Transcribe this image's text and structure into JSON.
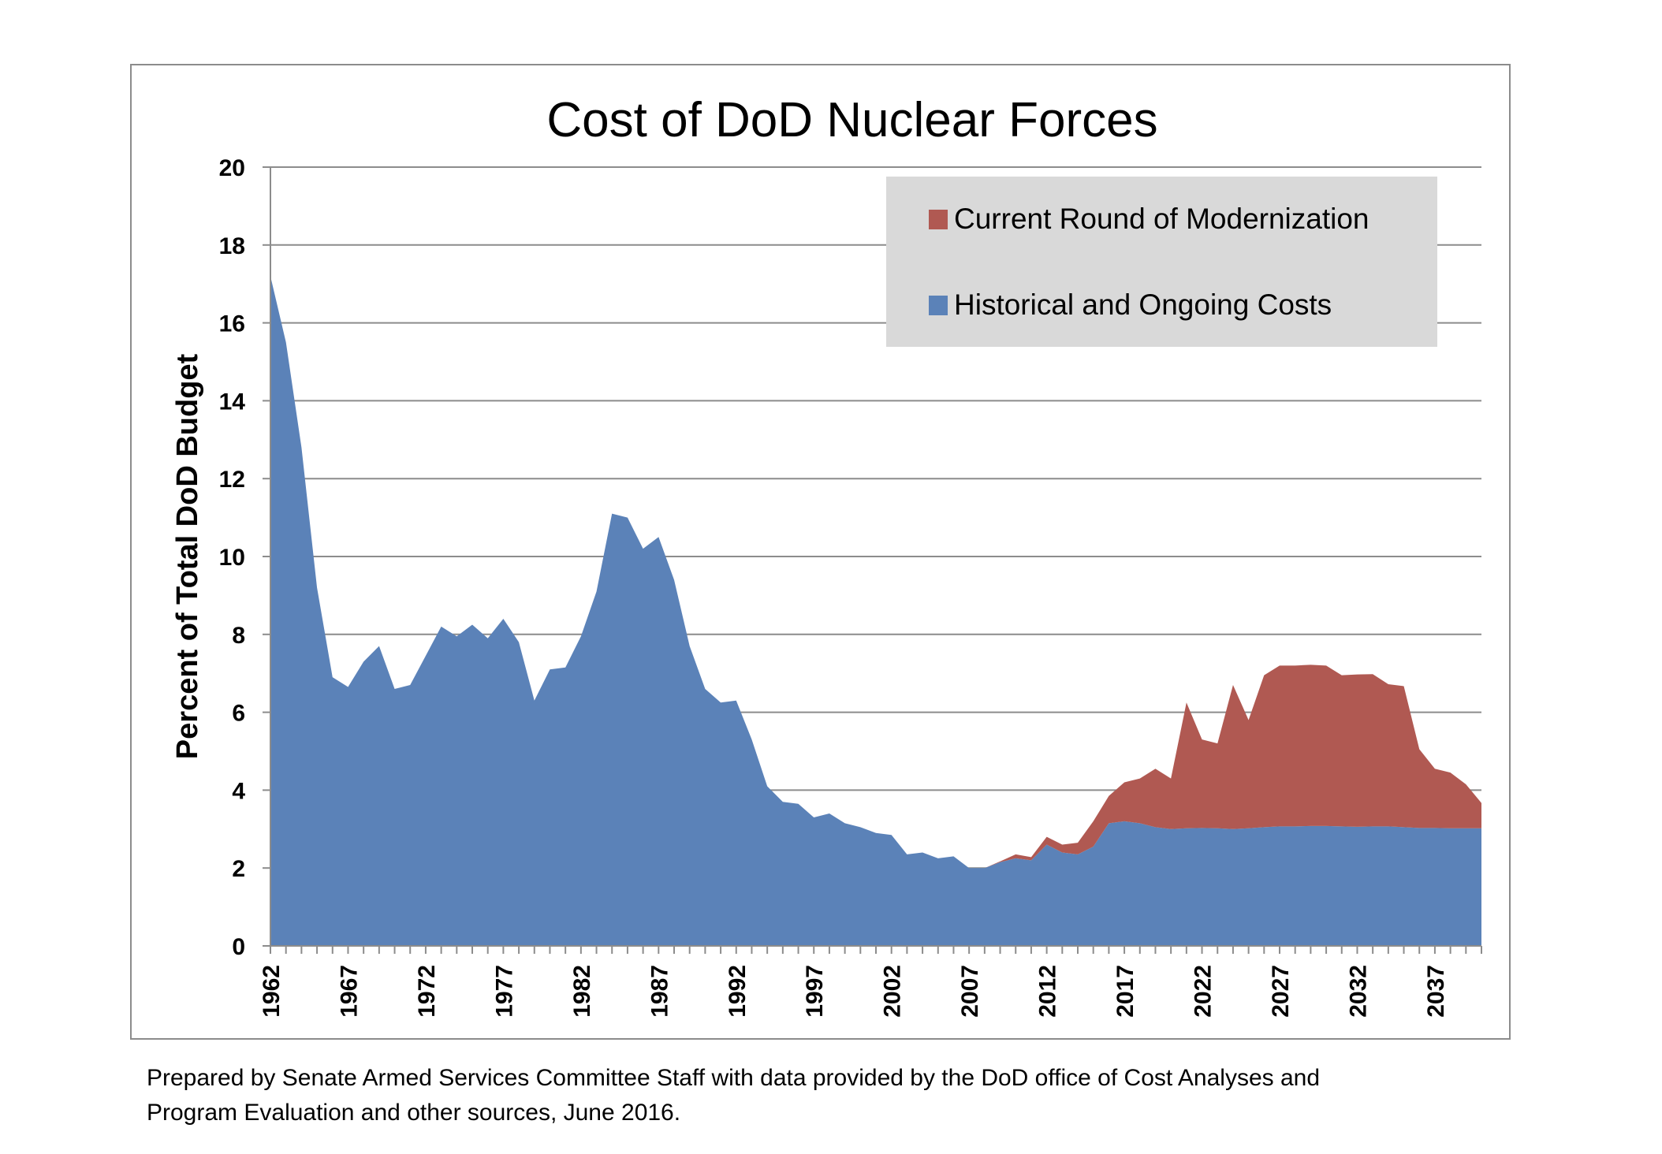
{
  "footnote": {
    "line1": "Prepared by Senate Armed Services Committee Staff with data provided by the DoD office of Cost Analyses and",
    "line2": "Program Evaluation and other sources, June 2016."
  },
  "colors": {
    "historical": "#5b82b8",
    "modernization": "#b05952",
    "legend_bg": "#d9d9d9",
    "grid": "#8c8c8c",
    "frame": "#8c8c8c"
  },
  "chart_data": {
    "type": "area",
    "stacked": true,
    "title": "Cost of DoD Nuclear Forces",
    "xlabel": "",
    "ylabel": "Percent of Total DoD Budget",
    "ylim": [
      0,
      20
    ],
    "yticks": [
      0,
      2,
      4,
      6,
      8,
      10,
      12,
      14,
      16,
      18,
      20
    ],
    "grid": true,
    "legend_position": "top-right",
    "x_start": 1962,
    "x_end": 2040,
    "xtick_labels": [
      "1962",
      "1967",
      "1972",
      "1977",
      "1982",
      "1987",
      "1992",
      "1997",
      "2002",
      "2007",
      "2012",
      "2017",
      "2022",
      "2027",
      "2032",
      "2037"
    ],
    "series": [
      {
        "name": "Historical and Ongoing Costs",
        "color": "#5b82b8",
        "values": [
          17.2,
          15.5,
          12.8,
          9.2,
          6.9,
          6.65,
          7.3,
          7.7,
          6.6,
          6.7,
          7.45,
          8.2,
          7.95,
          8.25,
          7.9,
          8.4,
          7.8,
          6.3,
          7.1,
          7.15,
          7.95,
          9.1,
          11.1,
          11.0,
          10.2,
          10.5,
          9.4,
          7.7,
          6.6,
          6.25,
          6.3,
          5.3,
          4.1,
          3.7,
          3.65,
          3.3,
          3.4,
          3.15,
          3.05,
          2.9,
          2.85,
          2.35,
          2.4,
          2.25,
          2.3,
          2.0,
          2.0,
          2.15,
          2.25,
          2.2,
          2.6,
          2.4,
          2.35,
          2.55,
          3.15,
          3.2,
          3.15,
          3.05,
          3.0,
          3.02,
          3.03,
          3.02,
          3.0,
          3.02,
          3.05,
          3.07,
          3.07,
          3.08,
          3.08,
          3.07,
          3.06,
          3.07,
          3.07,
          3.05,
          3.03,
          3.03,
          3.02,
          3.02,
          3.02
        ]
      },
      {
        "name": "Current Round of Modernization",
        "color": "#b05952",
        "values": [
          0,
          0,
          0,
          0,
          0,
          0,
          0,
          0,
          0,
          0,
          0,
          0,
          0,
          0,
          0,
          0,
          0,
          0,
          0,
          0,
          0,
          0,
          0,
          0,
          0,
          0,
          0,
          0,
          0,
          0,
          0,
          0,
          0,
          0,
          0,
          0,
          0,
          0,
          0,
          0,
          0,
          0,
          0,
          0,
          0,
          0,
          0,
          0.02,
          0.1,
          0.08,
          0.2,
          0.2,
          0.3,
          0.65,
          0.7,
          1.0,
          1.15,
          1.5,
          1.3,
          3.23,
          2.27,
          2.18,
          3.7,
          2.78,
          3.9,
          4.13,
          4.13,
          4.14,
          4.12,
          3.88,
          3.91,
          3.91,
          3.65,
          3.62,
          2.02,
          1.52,
          1.43,
          1.13,
          0.65
        ]
      }
    ],
    "legend": [
      {
        "label": "Current Round of Modernization",
        "color": "#b05952"
      },
      {
        "label": "Historical and Ongoing Costs",
        "color": "#5b82b8"
      }
    ]
  }
}
